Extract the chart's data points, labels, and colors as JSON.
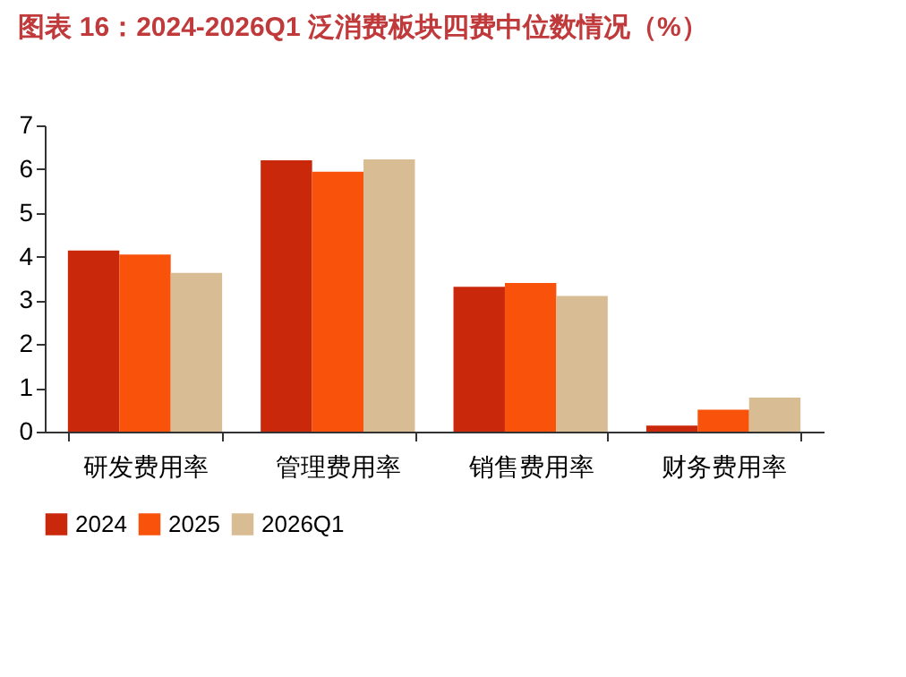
{
  "chart_data": {
    "type": "bar",
    "title": "图表 16：2024-2026Q1 泛消费板块四费中位数情况（%）",
    "categories": [
      "研发费用率",
      "管理费用率",
      "销售费用率",
      "财务费用率"
    ],
    "series": [
      {
        "name": "2024",
        "color": "#c9280a",
        "values": [
          4.14,
          6.2,
          3.31,
          0.14
        ]
      },
      {
        "name": "2025",
        "color": "#f8520b",
        "values": [
          4.05,
          5.94,
          3.4,
          0.5
        ]
      },
      {
        "name": "2026Q1",
        "color": "#d8bc94",
        "values": [
          3.63,
          6.22,
          3.1,
          0.78
        ]
      }
    ],
    "ylim": [
      0,
      7
    ],
    "yticks": [
      0,
      1,
      2,
      3,
      4,
      5,
      6,
      7
    ],
    "grid": false,
    "legend": "bottom"
  }
}
